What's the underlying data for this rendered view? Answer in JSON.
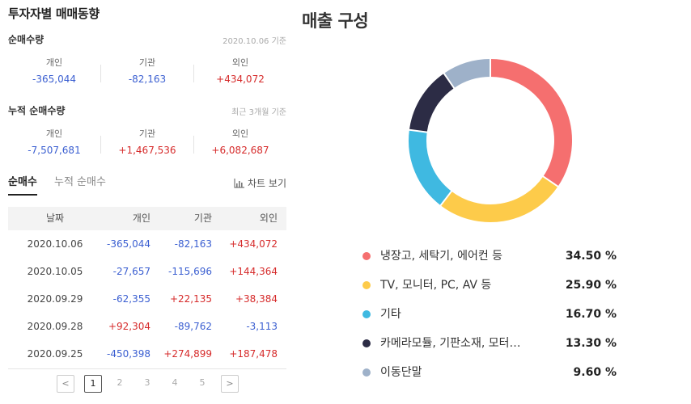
{
  "investor": {
    "title": "투자자별 매매동향",
    "net": {
      "label": "순매수량",
      "date": "2020.10.06 기준",
      "items": [
        {
          "name": "개인",
          "value": "-365,044",
          "dir": "neg"
        },
        {
          "name": "기관",
          "value": "-82,163",
          "dir": "neg"
        },
        {
          "name": "외인",
          "value": "+434,072",
          "dir": "pos"
        }
      ]
    },
    "cumulative": {
      "label": "누적 순매수량",
      "date": "최근 3개월 기준",
      "items": [
        {
          "name": "개인",
          "value": "-7,507,681",
          "dir": "neg"
        },
        {
          "name": "기관",
          "value": "+1,467,536",
          "dir": "pos"
        },
        {
          "name": "외인",
          "value": "+6,082,687",
          "dir": "pos"
        }
      ]
    },
    "tabs": [
      "순매수",
      "누적 순매수"
    ],
    "chart_view": "차트 보기",
    "table": {
      "headers": [
        "날짜",
        "개인",
        "기관",
        "외인"
      ],
      "rows": [
        {
          "date": "2020.10.06",
          "personal": "-365,044",
          "inst": "-82,163",
          "foreign": "+434,072"
        },
        {
          "date": "2020.10.05",
          "personal": "-27,657",
          "inst": "-115,696",
          "foreign": "+144,364"
        },
        {
          "date": "2020.09.29",
          "personal": "-62,355",
          "inst": "+22,135",
          "foreign": "+38,384"
        },
        {
          "date": "2020.09.28",
          "personal": "+92,304",
          "inst": "-89,762",
          "foreign": "-3,113"
        },
        {
          "date": "2020.09.25",
          "personal": "-450,398",
          "inst": "+274,899",
          "foreign": "+187,478"
        }
      ]
    },
    "pagination": {
      "prev": "<",
      "pages": [
        "1",
        "2",
        "3",
        "4",
        "5"
      ],
      "current": "1",
      "next": ">"
    }
  },
  "revenue": {
    "title": "매출 구성",
    "chart_data": {
      "type": "pie",
      "donut": true,
      "categories": [
        "냉장고, 세탁기, 에어컨 등",
        "TV, 모니터, PC, AV 등",
        "기타",
        "카메라모듈, 기판소재, 모터…",
        "이동단말"
      ],
      "values": [
        34.5,
        25.9,
        16.7,
        13.3,
        9.6
      ],
      "labels": [
        "34.50 %",
        "25.90 %",
        "16.70 %",
        "13.30 %",
        "9.60 %"
      ],
      "colors": [
        "#f56f6f",
        "#fdcb4a",
        "#3fb9e1",
        "#2c2c45",
        "#9eb1c9"
      ],
      "legend_position": "bottom"
    }
  }
}
